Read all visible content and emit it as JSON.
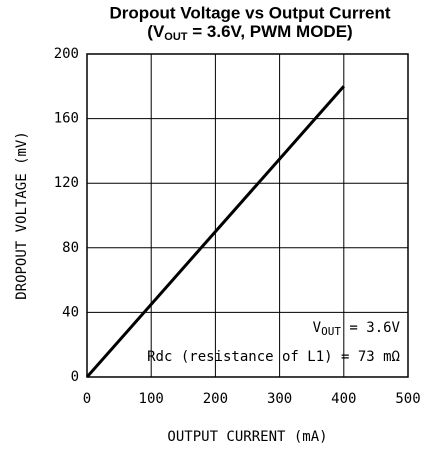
{
  "chart_data": {
    "type": "line",
    "title": "Dropout Voltage vs Output Current",
    "subtitle": [
      "(V",
      "OUT",
      " = 3.6V, PWM MODE)"
    ],
    "x_label": "OUTPUT CURRENT (mA)",
    "y_label": "DROPOUT VOLTAGE (mV)",
    "x": [
      0,
      400
    ],
    "values": [
      0,
      180
    ],
    "color": "#000000",
    "xlim": [
      0,
      500
    ],
    "xticks": [
      0,
      100,
      200,
      300,
      400,
      500
    ],
    "ylim": [
      0,
      200
    ],
    "yticks": [
      0,
      40,
      80,
      120,
      160,
      200
    ],
    "grid": true,
    "annotations": [
      [
        "V",
        "OUT",
        " = 3.6V"
      ],
      [
        "Rdc (resistance of L1) = 73 mΩ"
      ]
    ]
  }
}
